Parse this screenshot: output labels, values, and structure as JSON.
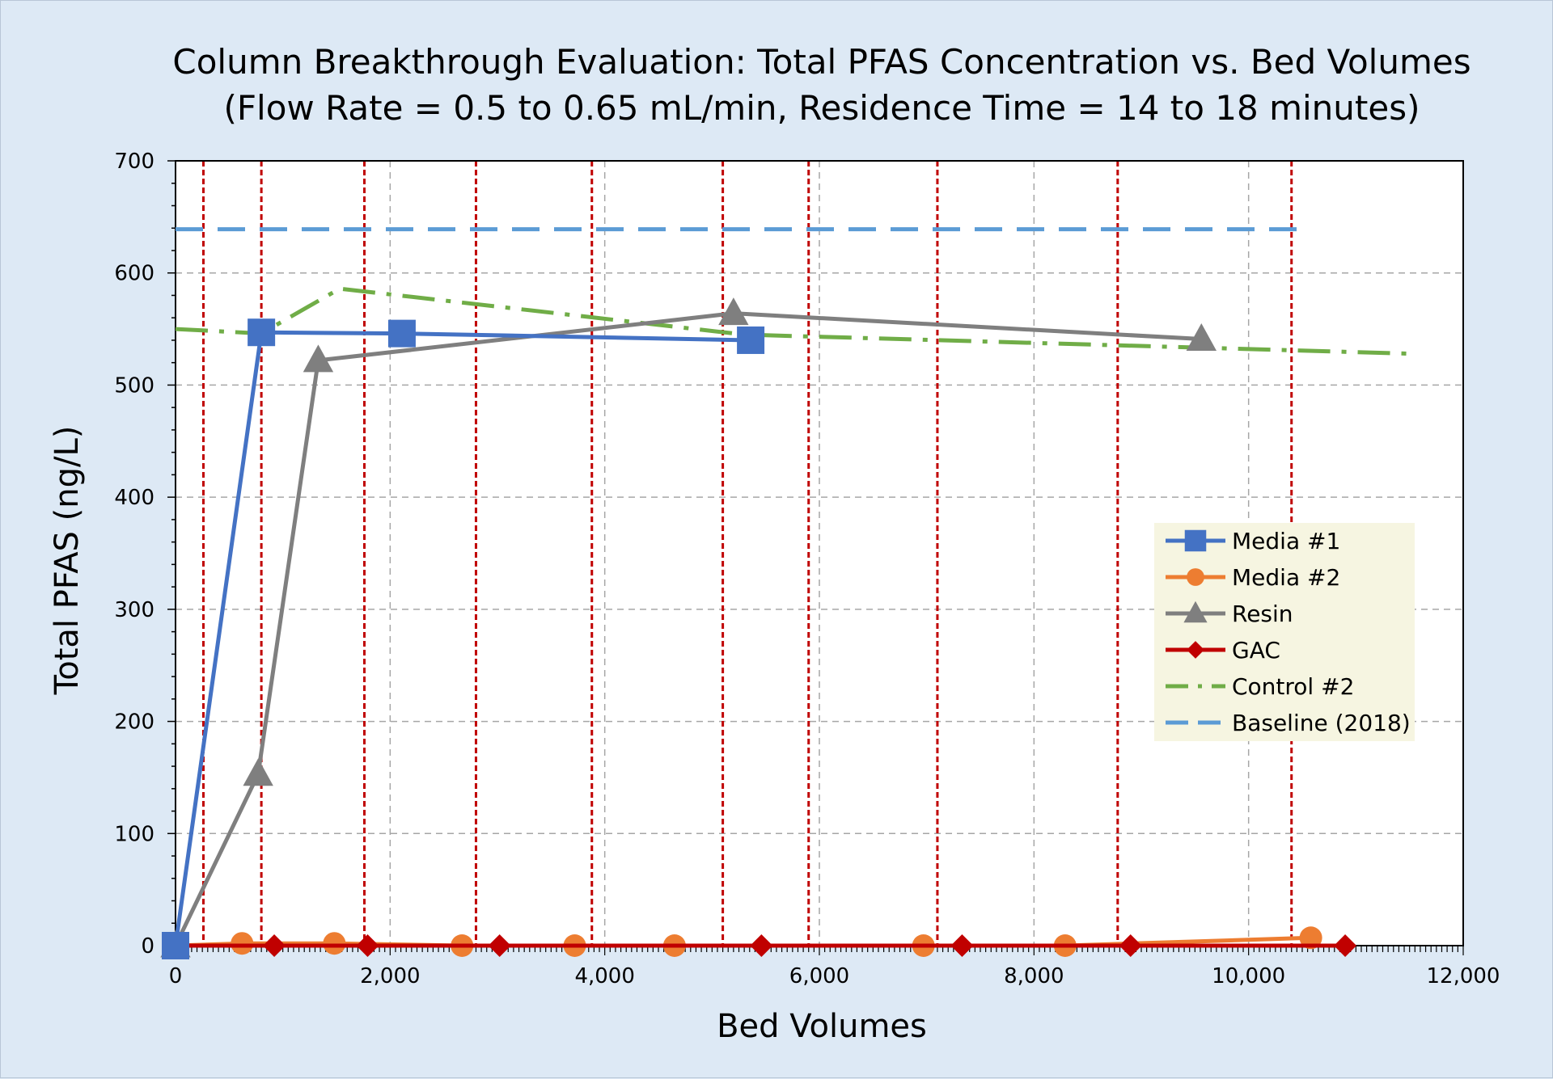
{
  "chart_data": {
    "type": "line",
    "title": "Column Breakthrough Evaluation:  Total PFAS Concentration vs. Bed Volumes",
    "subtitle": "(Flow Rate = 0.5 to 0.65 mL/min, Residence Time = 14 to 18 minutes)",
    "xlabel": "Bed Volumes",
    "ylabel": "Total PFAS (ng/L)",
    "xlim": [
      0,
      12000
    ],
    "ylim": [
      0,
      700
    ],
    "x_ticks": [
      0,
      2000,
      4000,
      6000,
      8000,
      10000,
      12000
    ],
    "x_tick_labels": [
      "0",
      "2,000",
      "4,000",
      "6,000",
      "8,000",
      "10,000",
      "12,000"
    ],
    "y_ticks": [
      0,
      100,
      200,
      300,
      400,
      500,
      600,
      700
    ],
    "y_tick_labels": [
      "0",
      "100",
      "200",
      "300",
      "400",
      "500",
      "600",
      "700"
    ],
    "grid": true,
    "legend_position": "right",
    "vertical_reference_lines": [
      260,
      800,
      1760,
      2800,
      3880,
      5100,
      5900,
      7100,
      8780,
      10400
    ],
    "series": [
      {
        "name": "Media #1",
        "color": "#4472c4",
        "marker": "square",
        "style": "solid",
        "x": [
          0,
          800,
          2110,
          5360
        ],
        "y": [
          0,
          547,
          546,
          540
        ]
      },
      {
        "name": "Media #2",
        "color": "#ed7d31",
        "marker": "circle",
        "style": "solid",
        "x": [
          0,
          620,
          1480,
          2670,
          3720,
          4650,
          6970,
          8290,
          10580
        ],
        "y": [
          0,
          2,
          2,
          0,
          0,
          0,
          0,
          0,
          7
        ]
      },
      {
        "name": "Resin",
        "color": "#7f7f7f",
        "marker": "triangle",
        "style": "solid",
        "x": [
          0,
          770,
          1330,
          5200,
          9560
        ],
        "y": [
          0,
          153,
          522,
          564,
          541
        ]
      },
      {
        "name": "GAC",
        "color": "#c00000",
        "marker": "diamond",
        "style": "solid",
        "x": [
          0,
          920,
          1790,
          3020,
          5460,
          7330,
          8900,
          10900
        ],
        "y": [
          0,
          0,
          0,
          0,
          0,
          0,
          0,
          0
        ]
      },
      {
        "name": "Control #2",
        "color": "#70ad47",
        "marker": "none",
        "style": "dashdot",
        "x": [
          0,
          800,
          1530,
          5300,
          11500
        ],
        "y": [
          550,
          546,
          586,
          545,
          528
        ]
      },
      {
        "name": "Baseline (2018)",
        "color": "#5b9bd5",
        "marker": "none",
        "style": "dashed",
        "x": [
          0,
          10460
        ],
        "y": [
          639,
          639
        ]
      }
    ]
  }
}
